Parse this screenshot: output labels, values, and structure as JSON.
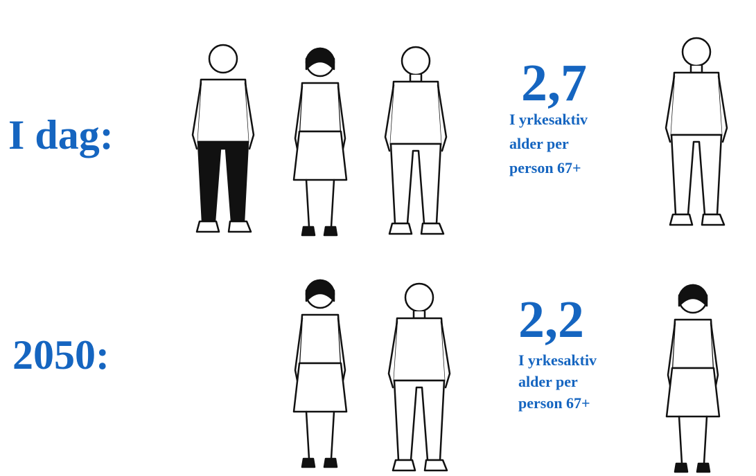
{
  "rows": [
    {
      "label": "I dag:",
      "number": "2,7",
      "caption": [
        "I yrkesaktiv",
        "alder per",
        "person 67+"
      ]
    },
    {
      "label": "2050:",
      "number": "2,2",
      "caption": [
        "I yrkesaktiv",
        "alder per",
        "person 67+"
      ]
    }
  ]
}
